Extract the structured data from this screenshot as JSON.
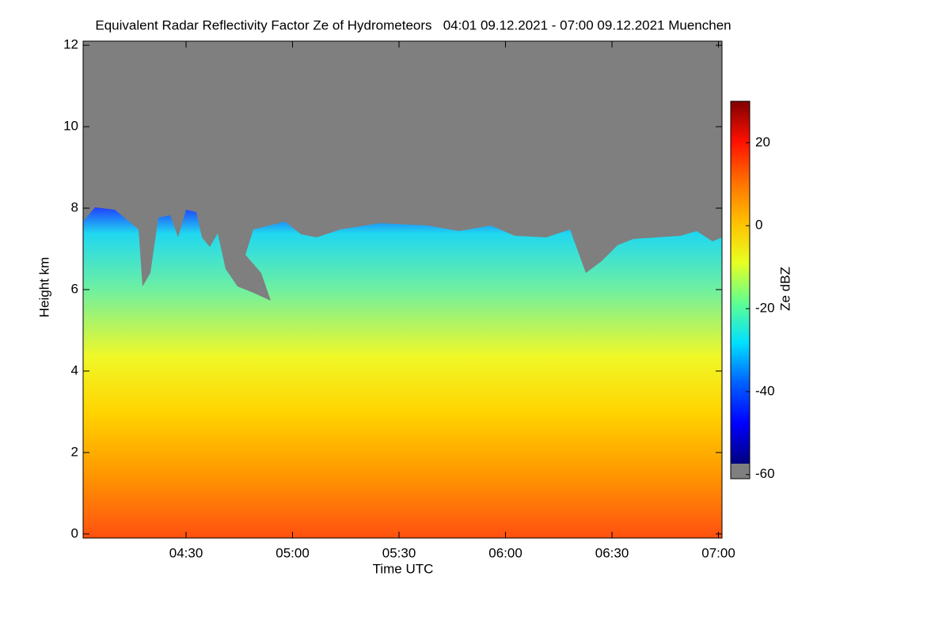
{
  "chart_data": {
    "type": "heatmap",
    "title": "Equivalent Radar Reflectivity Factor Ze of Hydrometeors   04:01 09.12.2021 - 07:00 09.12.2021 Muenchen",
    "x_label": "Time UTC",
    "y_label": "Height km",
    "xlim": [
      241,
      421
    ],
    "xticks": [
      {
        "value": 270,
        "label": "04:30"
      },
      {
        "value": 300,
        "label": "05:00"
      },
      {
        "value": 330,
        "label": "05:30"
      },
      {
        "value": 360,
        "label": "06:00"
      },
      {
        "value": 390,
        "label": "06:30"
      },
      {
        "value": 420,
        "label": "07:00"
      }
    ],
    "ylim": [
      -0.1,
      12.1
    ],
    "yticks": [
      0,
      2,
      4,
      6,
      8,
      10,
      12
    ],
    "missing_color": "#7f7f7f",
    "colorbar": {
      "label": "Ze dBZ",
      "lim": [
        -61,
        30
      ],
      "ticks": [
        -60,
        -40,
        -20,
        0,
        20
      ],
      "colors": [
        "#00007f",
        "#0000ff",
        "#0060ff",
        "#00e0ff",
        "#60ff90",
        "#e8ff20",
        "#ffc000",
        "#ff7000",
        "#ff1000",
        "#800000"
      ]
    }
  }
}
